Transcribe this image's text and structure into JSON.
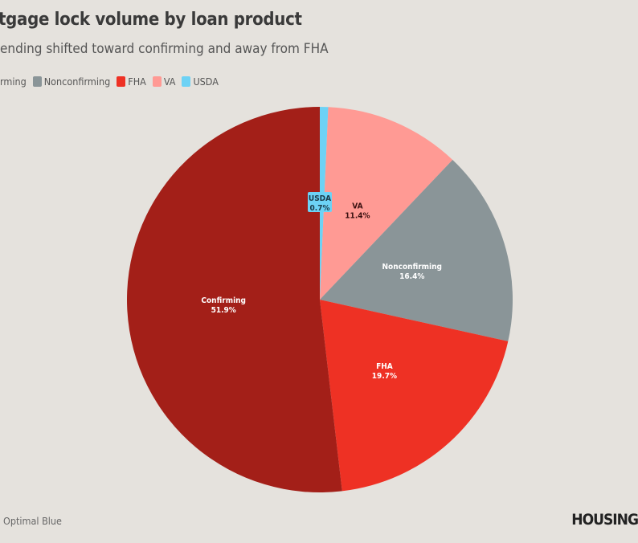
{
  "title": "tgage lock volume by loan product",
  "subtitle": "ending shifted toward confirming and away from FHA",
  "source": "Optimal Blue",
  "logo": "HOUSING",
  "chart_data": {
    "type": "pie",
    "start": "12 o'clock, clockwise",
    "slices": [
      {
        "name": "USDA",
        "value": 0.7,
        "label": "0.7%",
        "color": "#6dd2f5",
        "label_color": "#1b3b4a"
      },
      {
        "name": "VA",
        "value": 11.4,
        "label": "11.4%",
        "color": "#ff9a94",
        "label_color": "#3a1010"
      },
      {
        "name": "Nonconfirming",
        "value": 16.4,
        "label": "16.4%",
        "color": "#8a9598",
        "label_color": "#ffffff"
      },
      {
        "name": "FHA",
        "value": 19.7,
        "label": "19.7%",
        "color": "#ee3124",
        "label_color": "#ffffff"
      },
      {
        "name": "Confirming",
        "value": 51.9,
        "label": "51.9%",
        "color": "#a31f18",
        "label_color": "#ffffff"
      }
    ],
    "legend": {
      "placement": "top-left",
      "items": [
        {
          "label": "rming",
          "color": "#a31f18"
        },
        {
          "label": "Nonconfirming",
          "color": "#8a9598"
        },
        {
          "label": "FHA",
          "color": "#ee3124"
        },
        {
          "label": "VA",
          "color": "#ff9a94"
        },
        {
          "label": "USDA",
          "color": "#6dd2f5"
        }
      ]
    }
  }
}
